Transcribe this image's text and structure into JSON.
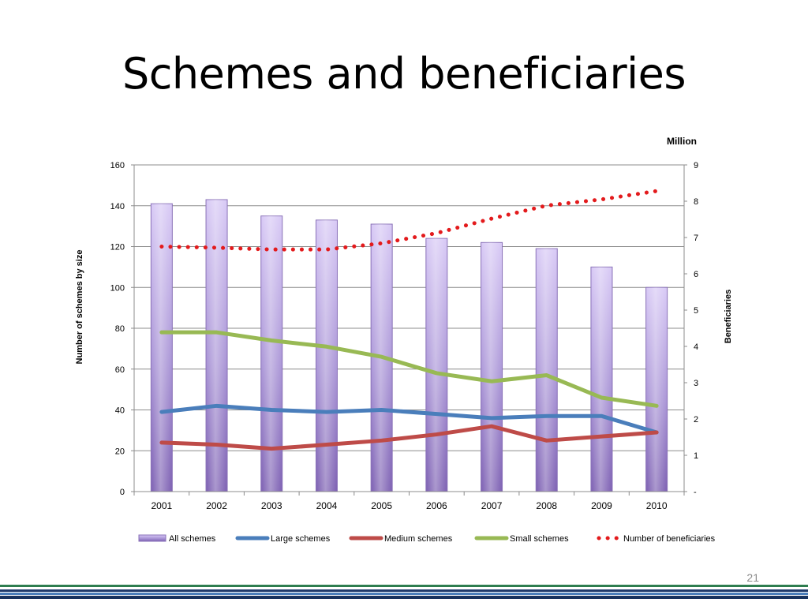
{
  "slide": {
    "title": "Schemes and beneficiaries",
    "number": "21"
  },
  "chart_data": {
    "type": "bar",
    "categories": [
      "2001",
      "2002",
      "2003",
      "2004",
      "2005",
      "2006",
      "2007",
      "2008",
      "2009",
      "2010"
    ],
    "series": [
      {
        "name": "All schemes",
        "kind": "bar",
        "axis": "left",
        "color": "#9a7fc8",
        "values": [
          141,
          143,
          135,
          133,
          131,
          124,
          122,
          119,
          110,
          100
        ]
      },
      {
        "name": "Large schemes",
        "kind": "line",
        "axis": "left",
        "color": "#4a7ebb",
        "values": [
          39,
          42,
          40,
          39,
          40,
          38,
          36,
          37,
          37,
          29
        ]
      },
      {
        "name": "Medium schemes",
        "kind": "line",
        "axis": "left",
        "color": "#be4b48",
        "values": [
          24,
          23,
          21,
          23,
          25,
          28,
          32,
          25,
          27,
          29
        ]
      },
      {
        "name": "Small schemes",
        "kind": "line",
        "axis": "left",
        "color": "#98b954",
        "values": [
          78,
          78,
          74,
          71,
          66,
          58,
          54,
          57,
          46,
          42
        ]
      },
      {
        "name": "Number of beneficiaries",
        "kind": "dotted-line",
        "axis": "right",
        "color": "#e31a1c",
        "values": [
          6.75,
          6.72,
          6.67,
          6.67,
          6.84,
          7.12,
          7.52,
          7.88,
          8.05,
          8.28
        ]
      }
    ],
    "left_axis": {
      "label": "Number of schemes by size",
      "min": 0,
      "max": 160,
      "ticks": [
        "0",
        "20",
        "40",
        "60",
        "80",
        "100",
        "120",
        "140",
        "160"
      ]
    },
    "right_axis": {
      "label": "Beneficiaries",
      "unit": "Million",
      "min": 0,
      "max": 9,
      "ticks": [
        "-",
        "1",
        "2",
        "3",
        "4",
        "5",
        "6",
        "7",
        "8",
        "9"
      ]
    },
    "grid": true,
    "legend_position": "bottom"
  }
}
